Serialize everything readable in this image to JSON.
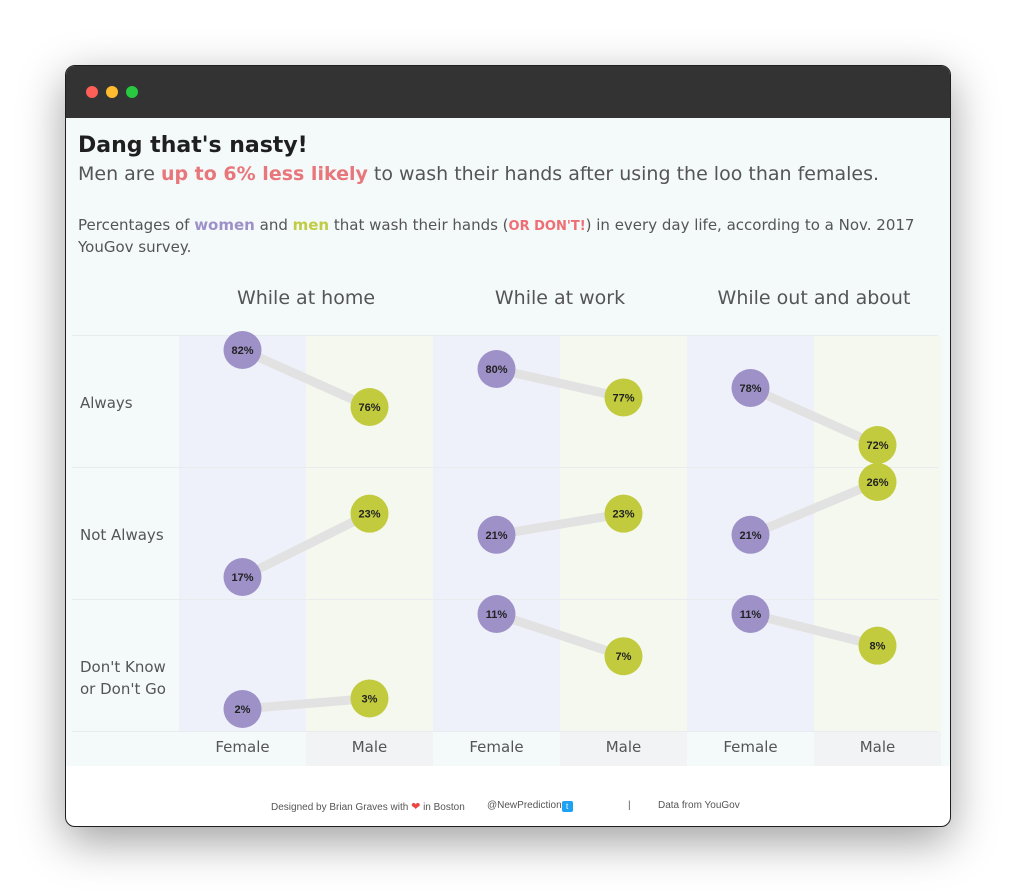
{
  "header": {
    "title": "Dang that's nasty!",
    "subtitle_prefix": "Men are ",
    "subtitle_highlight": "up to 6% less likely",
    "subtitle_suffix": " to wash their hands after using the loo than females.",
    "desc_1": "Percentages of ",
    "desc_women": "women",
    "desc_2": " and ",
    "desc_men": "men",
    "desc_3": " that wash their hands (",
    "desc_ordont": "OR DON'T!",
    "desc_4": ") in every day life, according to a Nov. 2017 YouGov survey."
  },
  "colors": {
    "female": "#9d91c8",
    "male": "#c2cb3e",
    "connector": "#e2e2e2",
    "highlight": "#e8767a"
  },
  "chart_data": {
    "type": "dumbbell",
    "unit": "%",
    "panels": [
      "While at home",
      "While at work",
      "While out and about"
    ],
    "rows": [
      "Always",
      "Not Always",
      "Don't Know or Don't Go"
    ],
    "row_labels": [
      [
        "Always"
      ],
      [
        "Not Always"
      ],
      [
        "Don't Know",
        "or Don't Go"
      ]
    ],
    "x_categories": [
      "Female",
      "Male"
    ],
    "series": [
      {
        "name": "Female",
        "values": [
          [
            82,
            17,
            2
          ],
          [
            80,
            21,
            11
          ],
          [
            78,
            21,
            11
          ]
        ]
      },
      {
        "name": "Male",
        "values": [
          [
            76,
            23,
            3
          ],
          [
            77,
            23,
            7
          ],
          [
            72,
            26,
            8
          ]
        ]
      }
    ]
  },
  "footer": {
    "designed_by": "Designed by Brian Graves with",
    "heart_icon": "heart-icon",
    "in_boston": "in Boston",
    "handle": "@NewPrediction",
    "twitter_icon": "twitter-icon",
    "divider": "|",
    "source": "Data from YouGov"
  }
}
